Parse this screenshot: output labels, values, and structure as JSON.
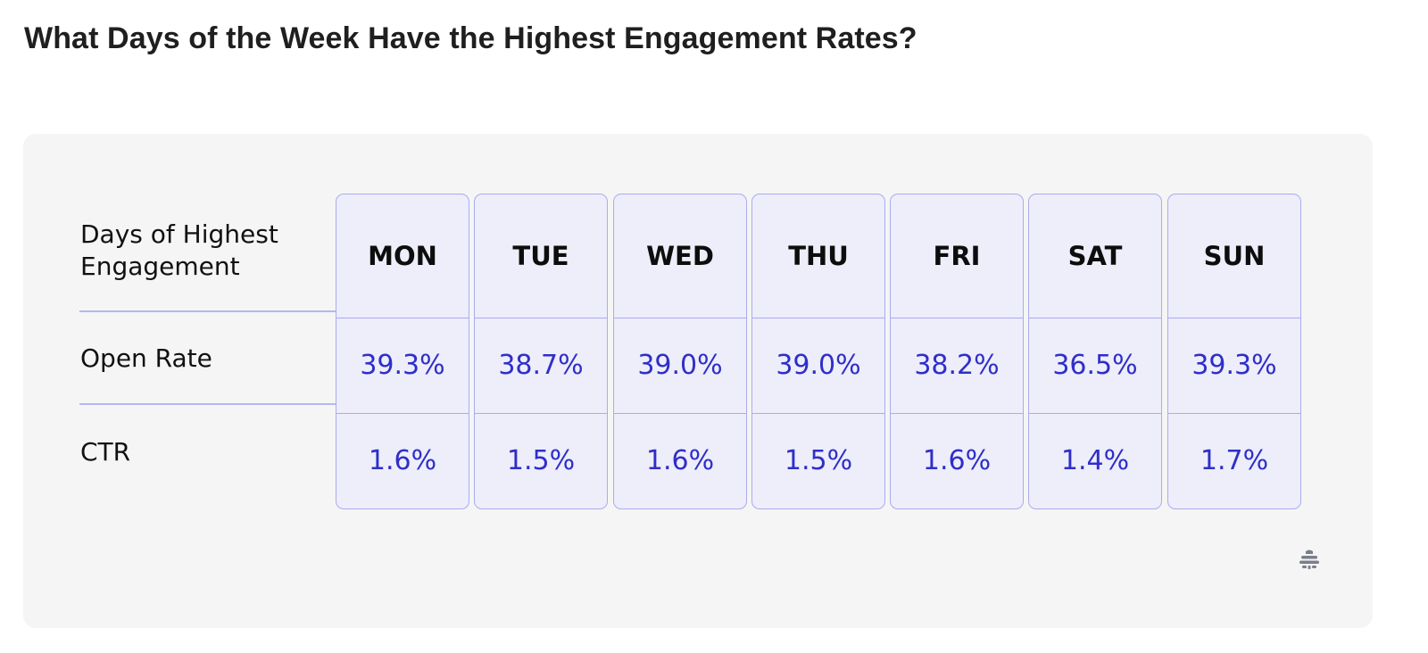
{
  "page": {
    "title": "What Days of the Week Have the Highest Engagement Rates?"
  },
  "table": {
    "header_label": [
      "Days of Highest",
      "Engagement"
    ],
    "row_labels": [
      "Open Rate",
      "CTR"
    ],
    "columns": [
      {
        "day": "MON",
        "open_rate": "39.3%",
        "ctr": "1.6%"
      },
      {
        "day": "TUE",
        "open_rate": "38.7%",
        "ctr": "1.5%"
      },
      {
        "day": "WED",
        "open_rate": "39.0%",
        "ctr": "1.6%"
      },
      {
        "day": "THU",
        "open_rate": "39.0%",
        "ctr": "1.5%"
      },
      {
        "day": "FRI",
        "open_rate": "38.2%",
        "ctr": "1.6%"
      },
      {
        "day": "SAT",
        "open_rate": "36.5%",
        "ctr": "1.4%"
      },
      {
        "day": "SUN",
        "open_rate": "39.3%",
        "ctr": "1.7%"
      }
    ]
  },
  "colors": {
    "card_background": "#f5f5f5",
    "cell_background": "#eeedfa",
    "cell_border": "#a9acef",
    "value_text": "#2e2fc8",
    "label_text": "#111111"
  },
  "icons": {
    "brand_logo": "beehive-logo-icon"
  },
  "chart_data": {
    "type": "table",
    "title": "What Days of the Week Have the Highest Engagement Rates?",
    "columns": [
      "MON",
      "TUE",
      "WED",
      "THU",
      "FRI",
      "SAT",
      "SUN"
    ],
    "rows": [
      {
        "name": "Open Rate",
        "values": [
          39.3,
          38.7,
          39.0,
          39.0,
          38.2,
          36.5,
          39.3
        ],
        "unit": "%"
      },
      {
        "name": "CTR",
        "values": [
          1.6,
          1.5,
          1.6,
          1.5,
          1.6,
          1.4,
          1.7
        ],
        "unit": "%"
      }
    ]
  }
}
